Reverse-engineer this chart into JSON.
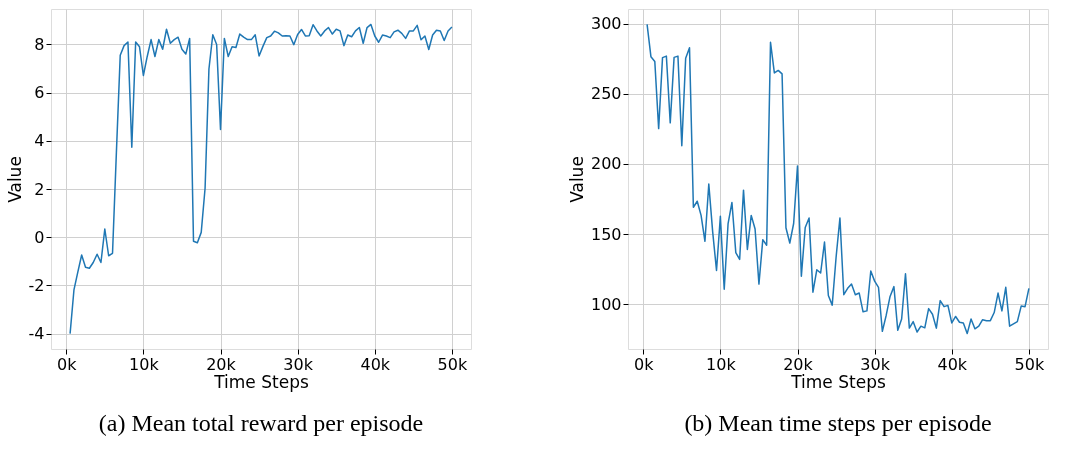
{
  "chart_data": [
    {
      "type": "line",
      "title": "(a) Mean total reward per episode",
      "xlabel": "Time Steps",
      "ylabel": "Value",
      "x": [
        500,
        1000,
        1500,
        2000,
        2500,
        3000,
        3500,
        4000,
        4500,
        5000,
        5500,
        6000,
        6500,
        7000,
        7500,
        8000,
        8500,
        9000,
        9500,
        10000,
        10500,
        11000,
        11500,
        12000,
        12500,
        13000,
        13500,
        14000,
        14500,
        15000,
        15500,
        16000,
        16500,
        17000,
        17500,
        18000,
        18500,
        19000,
        19500,
        20000,
        20500,
        21000,
        21500,
        22000,
        22500,
        23000,
        23500,
        24000,
        24500,
        25000,
        25500,
        26000,
        26500,
        27000,
        27500,
        28000,
        28500,
        29000,
        29500,
        30000,
        30500,
        31000,
        31500,
        32000,
        32500,
        33000,
        33500,
        34000,
        34500,
        35000,
        35500,
        36000,
        36500,
        37000,
        37500,
        38000,
        38500,
        39000,
        39500,
        40000,
        40500,
        41000,
        41500,
        42000,
        42500,
        43000,
        43500,
        44000,
        44500,
        45000,
        45500,
        46000,
        46500,
        47000,
        47500,
        48000,
        48500,
        49000,
        49500,
        50000
      ],
      "series": [
        {
          "color": "#1f77b4",
          "values": [
            -4.0,
            -2.19,
            -1.45,
            -0.74,
            -1.25,
            -1.29,
            -1.05,
            -0.71,
            -1.05,
            0.34,
            -0.77,
            -0.67,
            3.5,
            7.55,
            7.95,
            8.1,
            3.73,
            8.1,
            7.9,
            6.71,
            7.5,
            8.2,
            7.5,
            8.2,
            7.8,
            8.63,
            8.05,
            8.2,
            8.3,
            7.8,
            7.6,
            8.25,
            -0.17,
            -0.23,
            0.2,
            2.03,
            6.98,
            8.4,
            8.0,
            4.47,
            8.25,
            7.5,
            7.9,
            7.87,
            8.43,
            8.3,
            8.2,
            8.2,
            8.4,
            7.52,
            7.92,
            8.28,
            8.35,
            8.55,
            8.48,
            8.35,
            8.36,
            8.35,
            7.99,
            8.41,
            8.62,
            8.35,
            8.36,
            8.82,
            8.56,
            8.35,
            8.56,
            8.7,
            8.43,
            8.63,
            8.56,
            7.95,
            8.39,
            8.32,
            8.56,
            8.7,
            8.05,
            8.7,
            8.83,
            8.35,
            8.09,
            8.39,
            8.35,
            8.28,
            8.52,
            8.59,
            8.46,
            8.25,
            8.56,
            8.56,
            8.79,
            8.19,
            8.35,
            7.79,
            8.39,
            8.59,
            8.56,
            8.16,
            8.56,
            8.72
          ]
        }
      ],
      "xlim": [
        -1975,
        52475
      ],
      "ylim": [
        -4.64,
        9.47
      ],
      "xticks": [
        {
          "value": 0,
          "label": "0k"
        },
        {
          "value": 10000,
          "label": "10k"
        },
        {
          "value": 20000,
          "label": "20k"
        },
        {
          "value": 30000,
          "label": "30k"
        },
        {
          "value": 40000,
          "label": "40k"
        },
        {
          "value": 50000,
          "label": "50k"
        }
      ],
      "yticks": [
        -4,
        -2,
        0,
        2,
        4,
        6,
        8
      ],
      "grid": true,
      "marker": "none",
      "line_style": "solid"
    },
    {
      "type": "line",
      "title": "(b) Mean time steps per episode",
      "xlabel": "Time Steps",
      "ylabel": "Value",
      "x": [
        500,
        1000,
        1500,
        2000,
        2500,
        3000,
        3500,
        4000,
        4500,
        5000,
        5500,
        6000,
        6500,
        7000,
        7500,
        8000,
        8500,
        9000,
        9500,
        10000,
        10500,
        11000,
        11500,
        12000,
        12500,
        13000,
        13500,
        14000,
        14500,
        15000,
        15500,
        16000,
        16500,
        17000,
        17500,
        18000,
        18500,
        19000,
        19500,
        20000,
        20500,
        21000,
        21500,
        22000,
        22500,
        23000,
        23500,
        24000,
        24500,
        25000,
        25500,
        26000,
        26500,
        27000,
        27500,
        28000,
        28500,
        29000,
        29500,
        30000,
        30500,
        31000,
        31500,
        32000,
        32500,
        33000,
        33500,
        34000,
        34500,
        35000,
        35500,
        36000,
        36500,
        37000,
        37500,
        38000,
        38500,
        39000,
        39500,
        40000,
        40500,
        41000,
        41500,
        42000,
        42500,
        43000,
        43500,
        44000,
        44500,
        45000,
        45500,
        46000,
        46500,
        47000,
        47500,
        48000,
        48500,
        49000,
        49500,
        50000
      ],
      "series": [
        {
          "color": "#1f77b4",
          "values": [
            299.5,
            276.4,
            273,
            225.2,
            275.8,
            276.9,
            229.3,
            276,
            276.9,
            212.9,
            275.3,
            282.9,
            169.1,
            173.4,
            163.3,
            144.8,
            185.7,
            151.7,
            124,
            162.6,
            110.6,
            157.5,
            172.5,
            136.7,
            131.9,
            181.3,
            139,
            163.3,
            153.6,
            114.3,
            146,
            142,
            286.8,
            264.9,
            266.7,
            264.2,
            154.5,
            143.6,
            157.5,
            198.6,
            119.9,
            154.7,
            161.4,
            108.5,
            124.5,
            122.2,
            144.3,
            106.2,
            99.3,
            133.3,
            161.4,
            106.7,
            111.3,
            114.3,
            106.7,
            107.9,
            94.5,
            95.2,
            123.6,
            116.4,
            112,
            80.6,
            92.1,
            105.5,
            112.5,
            81.3,
            89.4,
            121.7,
            82.9,
            87.5,
            80.1,
            84.3,
            83.1,
            96.8,
            92.8,
            82.9,
            102.5,
            98.2,
            99.1,
            86.6,
            91.2,
            87.1,
            86.6,
            79,
            89.4,
            82.4,
            84.3,
            88.9,
            88.2,
            88.2,
            94,
            107.9,
            95.2,
            112,
            84.3,
            85.9,
            87.5,
            98.6,
            98.2,
            111.3
          ]
        }
      ],
      "xlim": [
        -1975,
        52475
      ],
      "ylim": [
        68,
        310.5
      ],
      "xticks": [
        {
          "value": 0,
          "label": "0k"
        },
        {
          "value": 10000,
          "label": "10k"
        },
        {
          "value": 20000,
          "label": "20k"
        },
        {
          "value": 30000,
          "label": "30k"
        },
        {
          "value": 40000,
          "label": "40k"
        },
        {
          "value": 50000,
          "label": "50k"
        }
      ],
      "yticks": [
        100,
        150,
        200,
        250,
        300
      ],
      "grid": true,
      "marker": "none",
      "line_style": "solid"
    }
  ]
}
